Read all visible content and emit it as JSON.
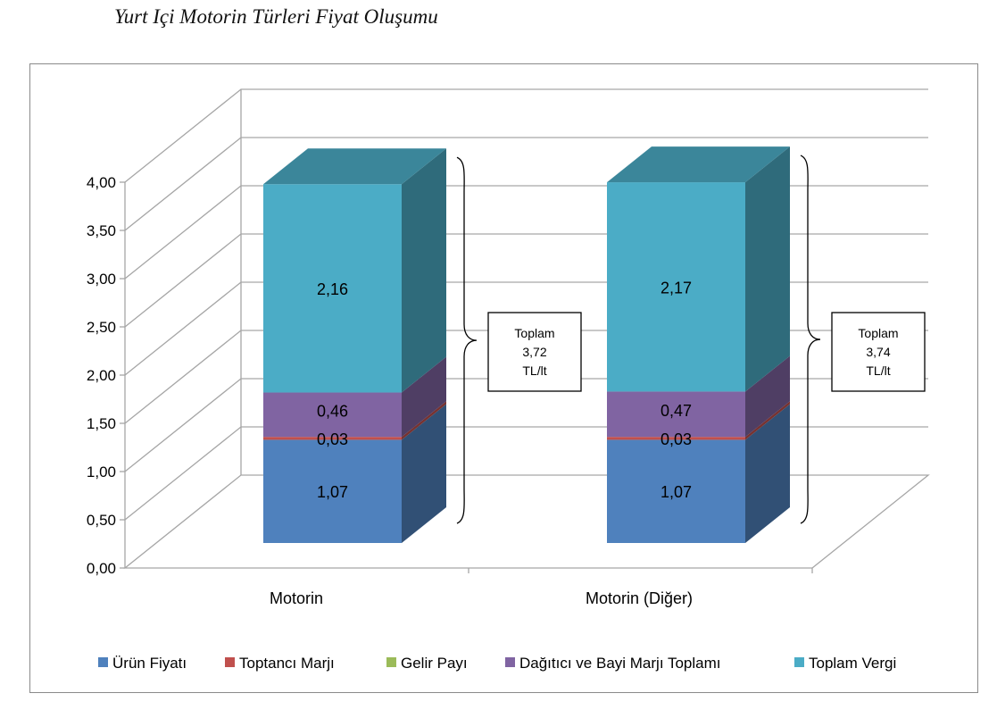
{
  "title": "Yurt Içi Motorin Türleri Fiyat Oluşumu",
  "chart_data": {
    "type": "bar",
    "stacked": true,
    "three_d": true,
    "categories": [
      "Motorin",
      "Motorin (Diğer)"
    ],
    "series": [
      {
        "name": "Ürün Fiyatı",
        "values": [
          1.07,
          1.07
        ],
        "labels": [
          "1,07",
          "1,07"
        ],
        "color": "#4f81bd"
      },
      {
        "name": "Toptancı Marjı",
        "values": [
          0.03,
          0.03
        ],
        "labels": [
          "0,03",
          "0,03"
        ],
        "color": "#c0504d"
      },
      {
        "name": "Gelir Payı",
        "values": [
          0.0,
          0.0
        ],
        "labels": [
          "",
          ""
        ],
        "color": "#9bbb59"
      },
      {
        "name": "Dağıtıcı ve Bayi Marjı Toplamı",
        "values": [
          0.46,
          0.47
        ],
        "labels": [
          "0,46",
          "0,47"
        ],
        "color": "#8064a2"
      },
      {
        "name": "Toplam Vergi",
        "values": [
          2.16,
          2.17
        ],
        "labels": [
          "2,16",
          "2,17"
        ],
        "color": "#4bacc6"
      }
    ],
    "totals": [
      {
        "lines": [
          "Toplam",
          "3,72",
          "TL/lt"
        ]
      },
      {
        "lines": [
          "Toplam",
          "3,74",
          "TL/lt"
        ]
      }
    ],
    "ylim": [
      0,
      4
    ],
    "yticks": [
      "0,00",
      "0,50",
      "1,00",
      "1,50",
      "2,00",
      "2,50",
      "3,00",
      "3,50",
      "4,00"
    ],
    "grid": true,
    "legend": "bottom"
  }
}
